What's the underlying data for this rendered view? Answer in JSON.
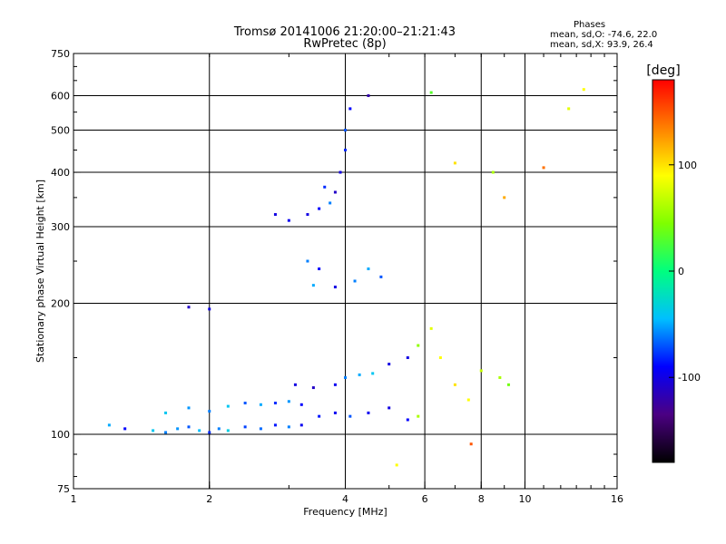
{
  "title_line1": "Tromsø 20141006 21:20:00–21:21:43",
  "title_line2": "RwPretec (8p)",
  "stats": {
    "heading": "Phases",
    "line1": "mean, sd,O:  -74.6, 22.0",
    "line2": "mean, sd,X:   93.9, 26.4"
  },
  "colorbar": {
    "unit": "[deg]",
    "ticks": [
      {
        "value": 100,
        "label": "100"
      },
      {
        "value": 0,
        "label": "0"
      },
      {
        "value": -100,
        "label": "-100"
      }
    ],
    "range": [
      -180,
      180
    ],
    "colors": [
      "#000000",
      "#4b0082",
      "#0000ff",
      "#00bfff",
      "#00ff7f",
      "#7fff00",
      "#ffff00",
      "#ff7f00",
      "#ff0000"
    ]
  },
  "chart_data": {
    "type": "scatter",
    "xlabel": "Frequency [MHz]",
    "ylabel": "Stationary phase Virtual Height [km]",
    "xscale": "log",
    "yscale": "log",
    "xlim": [
      1,
      16
    ],
    "ylim": [
      75,
      750
    ],
    "xticks": [
      {
        "value": 1,
        "label": "1"
      },
      {
        "value": 2,
        "label": "2"
      },
      {
        "value": 4,
        "label": "4"
      },
      {
        "value": 6,
        "label": "6"
      },
      {
        "value": 8,
        "label": "8"
      },
      {
        "value": 10,
        "label": "10"
      },
      {
        "value": 16,
        "label": "16"
      }
    ],
    "yticks": [
      {
        "value": 75,
        "label": "75"
      },
      {
        "value": 100,
        "label": "100"
      },
      {
        "value": 200,
        "label": "200"
      },
      {
        "value": 300,
        "label": "300"
      },
      {
        "value": 400,
        "label": "400"
      },
      {
        "value": 500,
        "label": "500"
      },
      {
        "value": 600,
        "label": "600"
      },
      {
        "value": 750,
        "label": "750"
      }
    ],
    "xgrid": [
      2,
      4,
      6,
      8,
      10
    ],
    "ygrid": [
      100,
      200,
      300,
      400,
      500,
      600
    ],
    "grid": true,
    "color_by": "phase [deg]",
    "points": [
      [
        1.2,
        105,
        -50
      ],
      [
        1.3,
        103,
        -90
      ],
      [
        1.5,
        102,
        -40
      ],
      [
        1.6,
        101,
        -60
      ],
      [
        1.7,
        103,
        -55
      ],
      [
        1.8,
        104,
        -70
      ],
      [
        1.9,
        102,
        -45
      ],
      [
        2.0,
        101,
        -80
      ],
      [
        2.1,
        103,
        -60
      ],
      [
        2.2,
        102,
        -35
      ],
      [
        2.4,
        104,
        -75
      ],
      [
        2.6,
        103,
        -65
      ],
      [
        2.8,
        105,
        -85
      ],
      [
        3.0,
        104,
        -60
      ],
      [
        3.2,
        105,
        -95
      ],
      [
        1.6,
        112,
        -40
      ],
      [
        1.8,
        115,
        -55
      ],
      [
        2.0,
        113,
        -60
      ],
      [
        2.2,
        116,
        -40
      ],
      [
        2.4,
        118,
        -70
      ],
      [
        2.6,
        117,
        -50
      ],
      [
        2.8,
        118,
        -80
      ],
      [
        3.0,
        119,
        -55
      ],
      [
        3.2,
        117,
        -90
      ],
      [
        3.5,
        110,
        -85
      ],
      [
        3.8,
        112,
        -95
      ],
      [
        4.1,
        110,
        -70
      ],
      [
        4.5,
        112,
        -95
      ],
      [
        5.0,
        115,
        -100
      ],
      [
        5.5,
        108,
        -90
      ],
      [
        5.8,
        110,
        60
      ],
      [
        3.1,
        130,
        -100
      ],
      [
        3.4,
        128,
        -110
      ],
      [
        3.8,
        130,
        -95
      ],
      [
        4.0,
        135,
        -60
      ],
      [
        4.3,
        137,
        -50
      ],
      [
        4.6,
        138,
        -40
      ],
      [
        5.0,
        145,
        -100
      ],
      [
        5.5,
        150,
        -100
      ],
      [
        5.8,
        160,
        50
      ],
      [
        6.2,
        175,
        80
      ],
      [
        6.5,
        150,
        90
      ],
      [
        7.0,
        130,
        100
      ],
      [
        7.5,
        120,
        90
      ],
      [
        8.0,
        140,
        70
      ],
      [
        8.8,
        135,
        60
      ],
      [
        9.2,
        130,
        40
      ],
      [
        3.3,
        320,
        -100
      ],
      [
        3.5,
        330,
        -90
      ],
      [
        3.7,
        340,
        -60
      ],
      [
        3.8,
        360,
        -110
      ],
      [
        3.9,
        400,
        -100
      ],
      [
        4.0,
        450,
        -80
      ],
      [
        4.0,
        500,
        -70
      ],
      [
        4.1,
        560,
        -90
      ],
      [
        2.8,
        320,
        -100
      ],
      [
        3.0,
        310,
        -95
      ],
      [
        3.6,
        370,
        -80
      ],
      [
        3.3,
        250,
        -60
      ],
      [
        3.5,
        240,
        -90
      ],
      [
        3.4,
        220,
        -50
      ],
      [
        3.8,
        218,
        -100
      ],
      [
        4.2,
        225,
        -60
      ],
      [
        4.5,
        240,
        -50
      ],
      [
        4.8,
        230,
        -70
      ],
      [
        1.8,
        196,
        -110
      ],
      [
        2.0,
        194,
        -100
      ],
      [
        4.5,
        600,
        -120
      ],
      [
        6.2,
        610,
        30
      ],
      [
        7.0,
        420,
        100
      ],
      [
        8.5,
        400,
        60
      ],
      [
        9.0,
        350,
        120
      ],
      [
        11.0,
        410,
        140
      ],
      [
        12.5,
        560,
        80
      ],
      [
        13.5,
        620,
        90
      ],
      [
        7.6,
        95,
        150
      ],
      [
        5.2,
        85,
        90
      ]
    ]
  }
}
